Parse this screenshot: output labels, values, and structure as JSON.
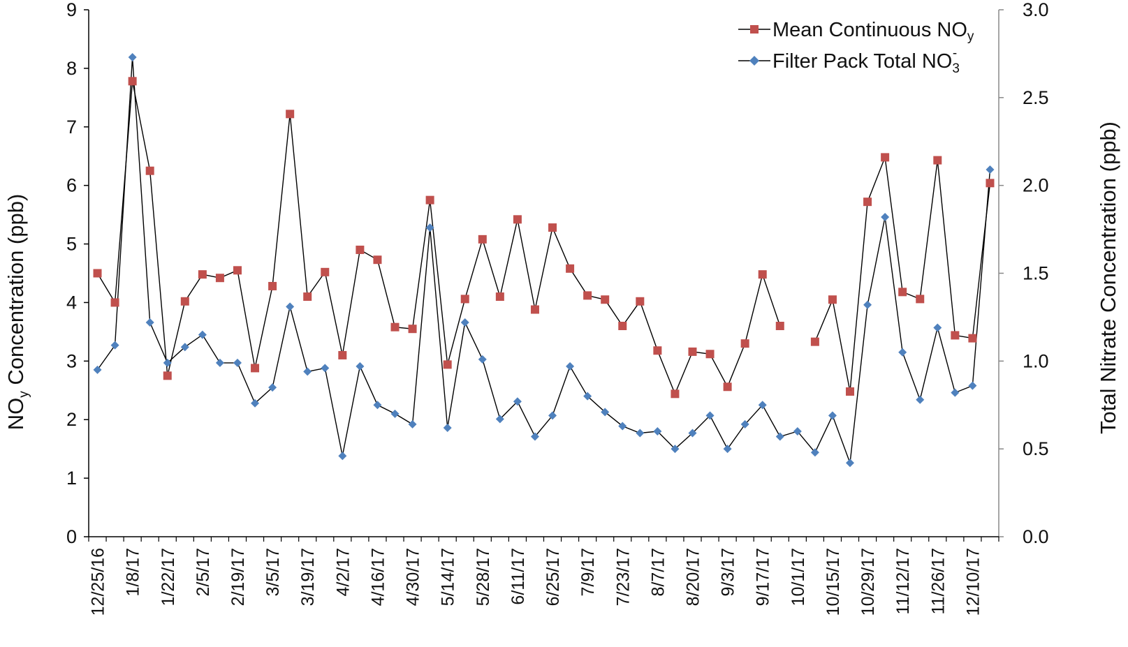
{
  "chart_data": {
    "type": "line",
    "categories": [
      "12/25/16",
      "1/1/17",
      "1/8/17",
      "1/15/17",
      "1/22/17",
      "1/29/17",
      "2/5/17",
      "2/12/17",
      "2/19/17",
      "2/26/17",
      "3/5/17",
      "3/12/17",
      "3/19/17",
      "3/26/17",
      "4/2/17",
      "4/9/17",
      "4/16/17",
      "4/23/17",
      "4/30/17",
      "5/7/17",
      "5/14/17",
      "5/21/17",
      "5/28/17",
      "6/4/17",
      "6/11/17",
      "6/18/17",
      "6/25/17",
      "7/2/17",
      "7/9/17",
      "7/16/17",
      "7/23/17",
      "7/30/17",
      "8/7/17",
      "8/13/17",
      "8/20/17",
      "8/27/17",
      "9/3/17",
      "9/10/17",
      "9/17/17",
      "9/24/17",
      "10/1/17",
      "10/8/17",
      "10/15/17",
      "10/22/17",
      "10/29/17",
      "11/5/17",
      "11/12/17",
      "11/19/17",
      "11/26/17",
      "12/3/17",
      "12/10/17",
      "12/17/17"
    ],
    "xtick_labels": [
      "12/25/16",
      "1/8/17",
      "1/22/17",
      "2/5/17",
      "2/19/17",
      "3/5/17",
      "3/19/17",
      "4/2/17",
      "4/16/17",
      "4/30/17",
      "5/14/17",
      "5/28/17",
      "6/11/17",
      "6/25/17",
      "7/9/17",
      "7/23/17",
      "8/7/17",
      "8/20/17",
      "9/3/17",
      "9/17/17",
      "10/1/17",
      "10/15/17",
      "10/29/17",
      "11/12/17",
      "11/26/17",
      "12/10/17"
    ],
    "series": [
      {
        "name": "Mean Continuous NOy",
        "axis": "left",
        "marker": "square",
        "color": "#c0504d",
        "values": [
          4.5,
          4.0,
          7.78,
          6.25,
          2.75,
          4.02,
          4.48,
          4.42,
          4.55,
          2.88,
          4.28,
          7.22,
          4.1,
          4.52,
          3.1,
          4.9,
          4.73,
          3.58,
          3.55,
          5.75,
          2.94,
          4.06,
          5.08,
          4.1,
          5.42,
          3.88,
          5.28,
          4.58,
          4.12,
          4.05,
          3.6,
          4.02,
          3.18,
          2.44,
          3.16,
          3.12,
          2.56,
          3.3,
          4.48,
          3.6,
          null,
          3.33,
          4.05,
          2.48,
          5.72,
          6.48,
          4.18,
          4.06,
          6.43,
          3.44,
          3.39,
          6.04
        ]
      },
      {
        "name": "Filter Pack Total NO3-",
        "axis": "right",
        "marker": "diamond",
        "color": "#4f81bd",
        "values": [
          0.95,
          1.09,
          2.73,
          1.22,
          0.99,
          1.08,
          1.15,
          0.99,
          0.99,
          0.76,
          0.85,
          1.31,
          0.94,
          0.96,
          0.46,
          0.97,
          0.75,
          0.7,
          0.64,
          1.76,
          0.62,
          1.22,
          1.01,
          0.67,
          0.77,
          0.57,
          0.69,
          0.97,
          0.8,
          0.71,
          0.63,
          0.59,
          0.6,
          0.5,
          0.59,
          0.69,
          0.5,
          0.64,
          0.75,
          0.57,
          0.6,
          0.48,
          0.69,
          0.42,
          1.32,
          1.82,
          1.05,
          0.78,
          1.19,
          0.82,
          0.86,
          2.09
        ]
      }
    ],
    "y_left": {
      "label_main": "NO",
      "label_sub": "y",
      "label_rest": " Concentration (ppb)",
      "ylim": [
        0,
        9
      ],
      "ticks": [
        "0",
        "1",
        "2",
        "3",
        "4",
        "5",
        "6",
        "7",
        "8",
        "9"
      ]
    },
    "y_right": {
      "label": "Total Nitrate Concentration (ppb)",
      "ylim": [
        0,
        3
      ],
      "ticks": [
        "0.0",
        "0.5",
        "1.0",
        "1.5",
        "2.0",
        "2.5",
        "3.0"
      ]
    },
    "legend": {
      "position": "top-right",
      "items": [
        {
          "main": "Mean Continuous NO",
          "sub": "y",
          "sup": ""
        },
        {
          "main": "Filter Pack Total NO",
          "sub": "3",
          "sup": "-"
        }
      ]
    },
    "grid": false
  }
}
